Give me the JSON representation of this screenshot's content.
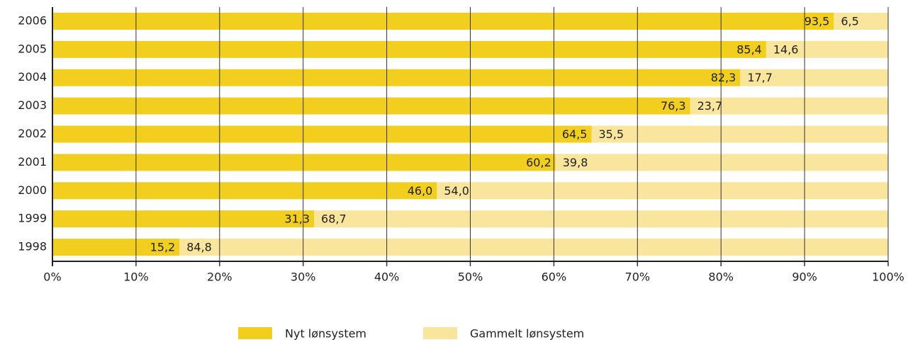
{
  "chart_data": {
    "type": "stacked-barh",
    "categories": [
      "2006",
      "2005",
      "2004",
      "2003",
      "2002",
      "2001",
      "2000",
      "1999",
      "1998"
    ],
    "series": [
      {
        "name": "Nyt lønsystem",
        "color": "#f2cf1f",
        "values": [
          93.5,
          85.4,
          82.3,
          76.3,
          64.5,
          60.2,
          46.0,
          31.3,
          15.2
        ],
        "value_labels": [
          "93,5",
          "85,4",
          "82,3",
          "76,3",
          "64,5",
          "60,2",
          "46,0",
          "31,3",
          "15,2"
        ]
      },
      {
        "name": "Gammelt lønsystem",
        "color": "#f9e59b",
        "values": [
          6.5,
          14.6,
          17.7,
          23.7,
          35.5,
          39.8,
          54.0,
          68.7,
          84.8
        ],
        "value_labels": [
          "6,5",
          "14,6",
          "17,7",
          "23,7",
          "35,5",
          "39,8",
          "54,0",
          "68,7",
          "84,8"
        ]
      }
    ],
    "xlim": [
      0,
      100
    ],
    "xticks": [
      {
        "value": 0,
        "label": "0%"
      },
      {
        "value": 10,
        "label": "10%"
      },
      {
        "value": 20,
        "label": "20%"
      },
      {
        "value": 30,
        "label": "30%"
      },
      {
        "value": 40,
        "label": "40%"
      },
      {
        "value": 50,
        "label": "50%"
      },
      {
        "value": 60,
        "label": "60%"
      },
      {
        "value": 70,
        "label": "70%"
      },
      {
        "value": 80,
        "label": "80%"
      },
      {
        "value": 90,
        "label": "90%"
      },
      {
        "value": 100,
        "label": "100%"
      }
    ],
    "grid": true,
    "legend": "bottom"
  }
}
